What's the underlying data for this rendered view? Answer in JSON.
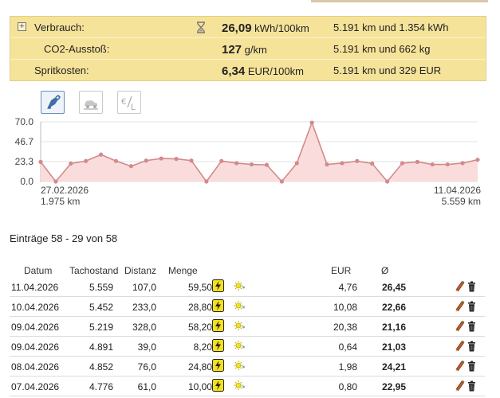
{
  "summary": {
    "rows": [
      {
        "label": "Verbrauch:",
        "value": "26,09",
        "unit": "kWh/100km",
        "detail": "5.191 km und 1.354 kWh"
      },
      {
        "label": "CO2-Ausstoß:",
        "value": "127",
        "unit": "g/km",
        "detail": "5.191 km und 662 kg"
      },
      {
        "label": "Spritkosten:",
        "value": "6,34",
        "unit": "EUR/100km",
        "detail": "5.191 km und 329 EUR"
      }
    ]
  },
  "chart_tabs": [
    {
      "icon": "fuel-pump-icon",
      "active": true
    },
    {
      "icon": "car-icon",
      "active": false
    },
    {
      "icon": "euro-per-liter-icon",
      "active": false
    }
  ],
  "chart_data": {
    "type": "area",
    "yticks": [
      "70.0",
      "46.7",
      "23.3",
      "0.0"
    ],
    "ylim": [
      0,
      70
    ],
    "start_label": {
      "date": "27.02.2026",
      "km": "1.975 km"
    },
    "end_label": {
      "date": "11.04.2026",
      "km": "5.559 km"
    },
    "values": [
      23.0,
      0.0,
      21.0,
      24.0,
      31.5,
      24.0,
      18.0,
      24.5,
      27.0,
      26.5,
      24.5,
      0.0,
      24.0,
      21.5,
      20.0,
      19.5,
      0.0,
      21.5,
      69.0,
      20.0,
      21.5,
      24.0,
      21.0,
      0.0,
      21.5,
      23.0,
      20.0,
      20.0,
      21.5,
      25.5
    ],
    "line_color": "#d28a8a",
    "fill_color": "#fbdcdc",
    "grid": true
  },
  "entries_caption": "Einträge 58 - 29 von 58",
  "table": {
    "headers": {
      "date": "Datum",
      "odo": "Tachostand",
      "dist": "Distanz",
      "qty": "Menge",
      "eur": "EUR",
      "avg": "Ø"
    },
    "rows": [
      {
        "date": "11.04.2026",
        "odo": "5.559",
        "dist": "107,0",
        "qty": "59,50",
        "eur": "4,76",
        "avg": "26,45"
      },
      {
        "date": "10.04.2026",
        "odo": "5.452",
        "dist": "233,0",
        "qty": "28,80",
        "eur": "10,08",
        "avg": "22,66"
      },
      {
        "date": "09.04.2026",
        "odo": "5.219",
        "dist": "328,0",
        "qty": "58,20",
        "eur": "20,38",
        "avg": "21,16"
      },
      {
        "date": "09.04.2026",
        "odo": "4.891",
        "dist": "39,0",
        "qty": "8,20",
        "eur": "0,64",
        "avg": "21,03"
      },
      {
        "date": "08.04.2026",
        "odo": "4.852",
        "dist": "76,0",
        "qty": "24,80",
        "eur": "1,98",
        "avg": "24,21"
      },
      {
        "date": "07.04.2026",
        "odo": "4.776",
        "dist": "61,0",
        "qty": "10,00",
        "eur": "0,80",
        "avg": "22,95"
      }
    ]
  },
  "colors": {
    "summary_bg": "#f6e39a",
    "bolt_bg": "#f3e21a",
    "accent": "#6a8fbf"
  }
}
